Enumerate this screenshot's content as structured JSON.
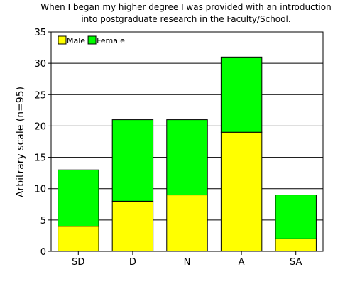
{
  "chart_data": {
    "type": "bar",
    "stacked": true,
    "title": [
      "When I began my higher degree I was provided with an introduction",
      "into postgraduate research in the Faculty/School."
    ],
    "xlabel": "",
    "ylabel": "Arbitrary scale (n=95)",
    "categories": [
      "SD",
      "D",
      "N",
      "A",
      "SA"
    ],
    "series": [
      {
        "name": "Male",
        "color": "#ffff00",
        "values": [
          4,
          8,
          9,
          19,
          2
        ]
      },
      {
        "name": "Female",
        "color": "#00ff00",
        "values": [
          9,
          13,
          12,
          12,
          7
        ]
      }
    ],
    "ylim": [
      0,
      35
    ],
    "yticks": [
      0,
      5,
      10,
      15,
      20,
      25,
      30,
      35
    ],
    "grid": "horizontal",
    "legend_position": "top-left"
  }
}
